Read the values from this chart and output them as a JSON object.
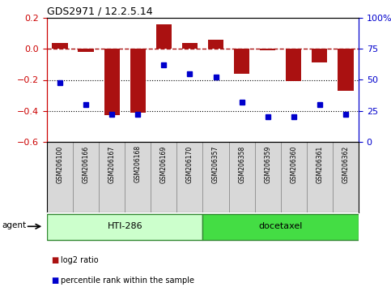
{
  "title": "GDS2971 / 12.2.5.14",
  "samples": [
    "GSM206100",
    "GSM206166",
    "GSM206167",
    "GSM206168",
    "GSM206169",
    "GSM206170",
    "GSM206357",
    "GSM206358",
    "GSM206359",
    "GSM206360",
    "GSM206361",
    "GSM206362"
  ],
  "log2_ratio": [
    0.04,
    -0.02,
    -0.43,
    -0.41,
    0.16,
    0.04,
    0.06,
    -0.16,
    -0.01,
    -0.21,
    -0.09,
    -0.27
  ],
  "percentile": [
    48,
    30,
    22,
    22,
    62,
    55,
    52,
    32,
    20,
    20,
    30,
    22
  ],
  "groups": [
    {
      "label": "HTI-286",
      "start": 0,
      "end": 6,
      "color": "#ccffcc"
    },
    {
      "label": "docetaxel",
      "start": 6,
      "end": 12,
      "color": "#44dd44"
    }
  ],
  "bar_color": "#aa1111",
  "dot_color": "#0000cc",
  "ylim_left": [
    -0.6,
    0.2
  ],
  "ylim_right": [
    0,
    100
  ],
  "yticks_left": [
    -0.6,
    -0.4,
    -0.2,
    0.0,
    0.2
  ],
  "yticks_right": [
    0,
    25,
    50,
    75,
    100
  ],
  "hline_y": 0.0,
  "dotted_lines": [
    -0.2,
    -0.4
  ],
  "agent_label": "agent",
  "legend_items": [
    {
      "label": "log2 ratio",
      "color": "#aa1111"
    },
    {
      "label": "percentile rank within the sample",
      "color": "#0000cc"
    }
  ],
  "background_color": "#ffffff",
  "right_axis_color": "#0000cc",
  "left_axis_color": "#cc0000"
}
